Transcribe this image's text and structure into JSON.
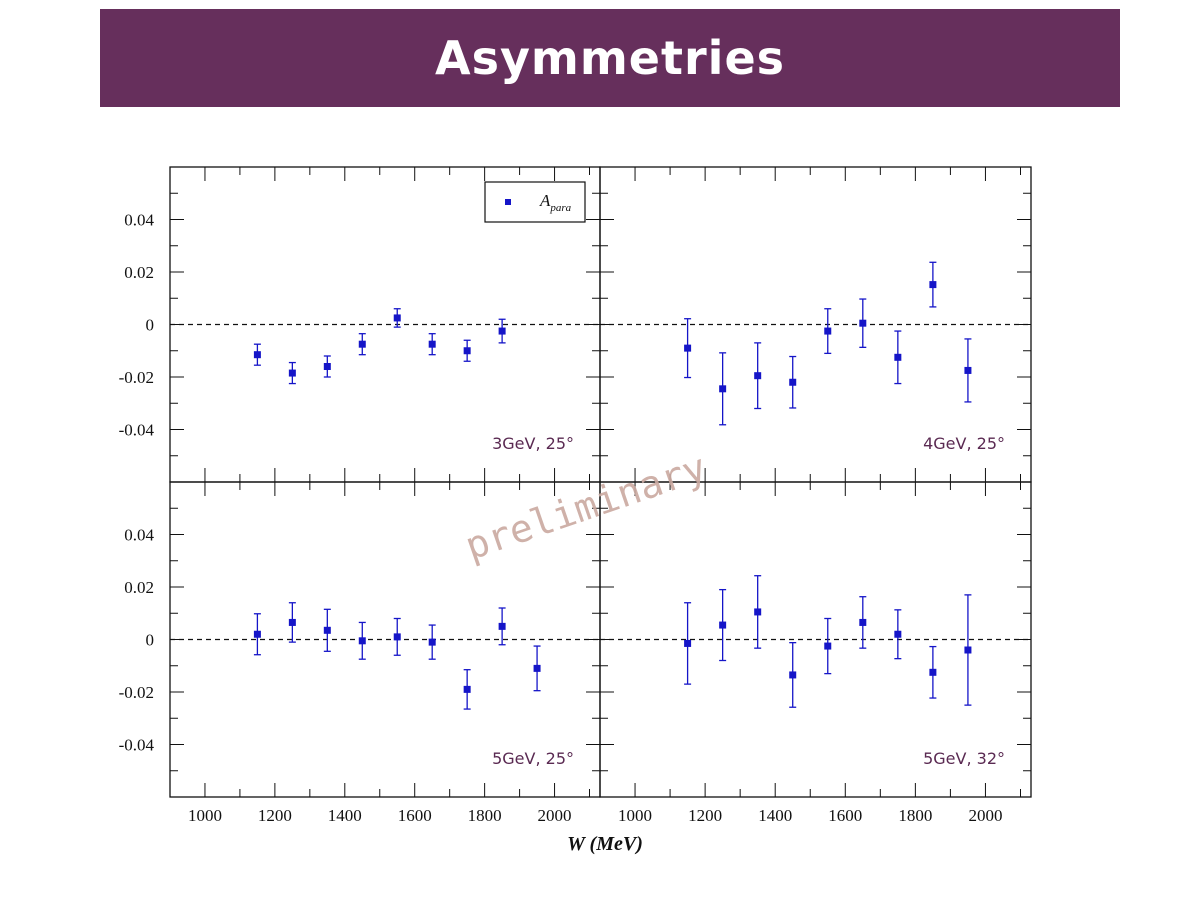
{
  "slide": {
    "title": "Asymmetries",
    "watermark": "preliminary"
  },
  "chart_data": {
    "type": "scatter",
    "xlabel": "W (MeV)",
    "xlim": [
      900,
      2130
    ],
    "ylim": [
      -0.06,
      0.06
    ],
    "x_ticks": [
      1000,
      1200,
      1400,
      1600,
      1800,
      2000
    ],
    "x_tick_labels": [
      "1000",
      "1200",
      "1400",
      "1600",
      "1800",
      "2000"
    ],
    "y_ticks": [
      0.04,
      0.02,
      0,
      -0.02,
      -0.04
    ],
    "y_tick_labels": [
      "0.04",
      "0.02",
      "0",
      "-0.02",
      "-0.04"
    ],
    "legend": {
      "entry": "A",
      "subscript": "para",
      "position": "top-right of top-left panel"
    },
    "reference_line": 0,
    "marker_color": "#1515c8",
    "panels": [
      {
        "label": "3GeV, 25°",
        "points": [
          {
            "x": 1150,
            "y": -0.0115,
            "err": 0.004
          },
          {
            "x": 1250,
            "y": -0.0185,
            "err": 0.004
          },
          {
            "x": 1350,
            "y": -0.016,
            "err": 0.004
          },
          {
            "x": 1450,
            "y": -0.0075,
            "err": 0.004
          },
          {
            "x": 1550,
            "y": 0.0025,
            "err": 0.0035
          },
          {
            "x": 1650,
            "y": -0.0075,
            "err": 0.004
          },
          {
            "x": 1750,
            "y": -0.01,
            "err": 0.004
          },
          {
            "x": 1850,
            "y": -0.0025,
            "err": 0.0045
          }
        ]
      },
      {
        "label": "4GeV, 25°",
        "points": [
          {
            "x": 1150,
            "y": -0.009,
            "err": 0.0112
          },
          {
            "x": 1250,
            "y": -0.0245,
            "err": 0.0137
          },
          {
            "x": 1350,
            "y": -0.0195,
            "err": 0.0125
          },
          {
            "x": 1450,
            "y": -0.022,
            "err": 0.0098
          },
          {
            "x": 1550,
            "y": -0.0025,
            "err": 0.0085
          },
          {
            "x": 1650,
            "y": 0.0005,
            "err": 0.0092
          },
          {
            "x": 1750,
            "y": -0.0125,
            "err": 0.01
          },
          {
            "x": 1850,
            "y": 0.0152,
            "err": 0.0085
          },
          {
            "x": 1950,
            "y": -0.0175,
            "err": 0.012
          }
        ]
      },
      {
        "label": "5GeV, 25°",
        "points": [
          {
            "x": 1150,
            "y": 0.002,
            "err": 0.0078
          },
          {
            "x": 1250,
            "y": 0.0065,
            "err": 0.0075
          },
          {
            "x": 1350,
            "y": 0.0035,
            "err": 0.008
          },
          {
            "x": 1450,
            "y": -0.0005,
            "err": 0.007
          },
          {
            "x": 1550,
            "y": 0.001,
            "err": 0.007
          },
          {
            "x": 1650,
            "y": -0.001,
            "err": 0.0065
          },
          {
            "x": 1750,
            "y": -0.019,
            "err": 0.0075
          },
          {
            "x": 1850,
            "y": 0.005,
            "err": 0.007
          },
          {
            "x": 1950,
            "y": -0.011,
            "err": 0.0085
          }
        ]
      },
      {
        "label": "5GeV, 32°",
        "points": [
          {
            "x": 1150,
            "y": -0.0015,
            "err": 0.0155
          },
          {
            "x": 1250,
            "y": 0.0055,
            "err": 0.0135
          },
          {
            "x": 1350,
            "y": 0.0105,
            "err": 0.0138
          },
          {
            "x": 1450,
            "y": -0.0135,
            "err": 0.0123
          },
          {
            "x": 1550,
            "y": -0.0025,
            "err": 0.0105
          },
          {
            "x": 1650,
            "y": 0.0065,
            "err": 0.0098
          },
          {
            "x": 1750,
            "y": 0.002,
            "err": 0.0093
          },
          {
            "x": 1850,
            "y": -0.0125,
            "err": 0.0098
          },
          {
            "x": 1950,
            "y": -0.004,
            "err": 0.021
          }
        ]
      }
    ]
  }
}
